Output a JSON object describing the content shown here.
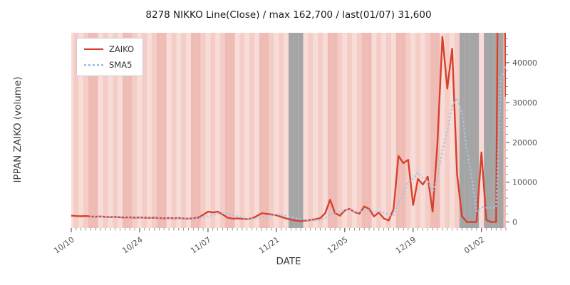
{
  "title": "8278 NIKKO Line(Close) / max 162,700 / last(01/07) 31,600",
  "legend": {
    "items": [
      {
        "label": "ZAIKO",
        "color": "#d8402c",
        "style": "solid"
      },
      {
        "label": "SMA5",
        "color": "#a4c6e6",
        "style": "dotted"
      }
    ]
  },
  "chart_data": {
    "type": "line",
    "title": "8278 NIKKO Line(Close) / max 162,700 / last(01/07) 31,600",
    "xlabel": "DATE",
    "ylabel": "IPPAN ZAIKO (volume)",
    "max_value": 162700,
    "last_date": "01/07",
    "last_value": 31600,
    "x": [
      "10/10",
      "10/11",
      "10/12",
      "10/13",
      "10/14",
      "10/15",
      "10/16",
      "10/17",
      "10/18",
      "10/19",
      "10/20",
      "10/21",
      "10/22",
      "10/23",
      "10/24",
      "10/25",
      "10/26",
      "10/27",
      "10/28",
      "10/29",
      "10/30",
      "10/31",
      "11/01",
      "11/02",
      "11/03",
      "11/04",
      "11/05",
      "11/06",
      "11/07",
      "11/08",
      "11/09",
      "11/10",
      "11/11",
      "11/12",
      "11/13",
      "11/14",
      "11/15",
      "11/16",
      "11/17",
      "11/18",
      "11/19",
      "11/20",
      "11/21",
      "11/22",
      "11/23",
      "11/24",
      "11/25",
      "11/26",
      "11/27",
      "11/28",
      "11/29",
      "11/30",
      "12/01",
      "12/02",
      "12/03",
      "12/04",
      "12/05",
      "12/06",
      "12/07",
      "12/08",
      "12/09",
      "12/10",
      "12/11",
      "12/12",
      "12/13",
      "12/14",
      "12/15",
      "12/16",
      "12/17",
      "12/18",
      "12/19",
      "12/20",
      "12/21",
      "12/22",
      "12/23",
      "12/24",
      "12/25",
      "12/26",
      "12/27",
      "12/28",
      "12/29",
      "12/30",
      "12/31",
      "01/01",
      "01/02",
      "01/03",
      "01/04",
      "01/05",
      "01/06",
      "01/07"
    ],
    "series": [
      {
        "name": "ZAIKO",
        "color": "#d8402c",
        "style": "solid",
        "values": [
          1600,
          1500,
          1450,
          1500,
          1400,
          1350,
          1400,
          1300,
          1250,
          1300,
          1200,
          1150,
          1200,
          1100,
          1150,
          1100,
          1050,
          1100,
          1000,
          950,
          1000,
          950,
          1000,
          900,
          850,
          950,
          1100,
          1800,
          2600,
          2400,
          2600,
          1900,
          1100,
          850,
          900,
          800,
          750,
          900,
          1500,
          2200,
          2050,
          1900,
          1700,
          1300,
          900,
          600,
          350,
          250,
          350,
          500,
          700,
          1000,
          2200,
          5600,
          2300,
          1600,
          2900,
          3300,
          2500,
          2100,
          3900,
          3300,
          1400,
          2400,
          900,
          400,
          3200,
          16600,
          14800,
          15600,
          4300,
          10800,
          9400,
          11400,
          2600,
          20000,
          46500,
          33500,
          43500,
          12000,
          1500,
          0,
          0,
          0,
          17500,
          500,
          0,
          0,
          162700,
          31600
        ]
      },
      {
        "name": "SMA5",
        "color": "#a4c6e6",
        "style": "dotted",
        "values": [
          null,
          null,
          null,
          null,
          1490,
          1440,
          1420,
          1390,
          1340,
          1320,
          1290,
          1240,
          1220,
          1190,
          1160,
          1140,
          1120,
          1100,
          1080,
          1040,
          1020,
          1000,
          980,
          960,
          940,
          930,
          960,
          1120,
          1460,
          1770,
          2100,
          2260,
          2120,
          1770,
          1470,
          1110,
          880,
          840,
          970,
          1230,
          1480,
          1710,
          1870,
          1830,
          1570,
          1280,
          970,
          680,
          490,
          410,
          430,
          560,
          950,
          2000,
          2360,
          2540,
          2920,
          3140,
          2520,
          2480,
          2940,
          3020,
          2640,
          2620,
          2380,
          1680,
          1660,
          4700,
          7180,
          10120,
          10900,
          12420,
          10980,
          10300,
          7700,
          10840,
          17980,
          22800,
          29220,
          31100,
          27400,
          18100,
          11400,
          2700,
          3800,
          3600,
          3600,
          3600,
          36140,
          38960
        ]
      }
    ],
    "xticks": [
      "10/10",
      "10/24",
      "11/07",
      "11/21",
      "12/05",
      "12/19",
      "01/02"
    ],
    "xtick_indices": [
      0,
      14,
      28,
      42,
      56,
      70,
      84
    ],
    "yticks": [
      0,
      10000,
      20000,
      30000,
      40000
    ],
    "ylim": [
      -1500,
      47500
    ],
    "grid": false,
    "legend_position": "upper-left",
    "background": {
      "weekday_colors": [
        "#f8dcd7",
        "#f4cdc7"
      ],
      "weekend_color": "#efbcb5",
      "holiday_color": "#a5a5a5",
      "weekend_day_indices": [
        4,
        5
      ],
      "holiday_ranges": [
        [
          "11/24",
          "11/26"
        ],
        [
          "12/29",
          "01/01"
        ],
        [
          "01/03",
          "01/06"
        ]
      ]
    }
  }
}
